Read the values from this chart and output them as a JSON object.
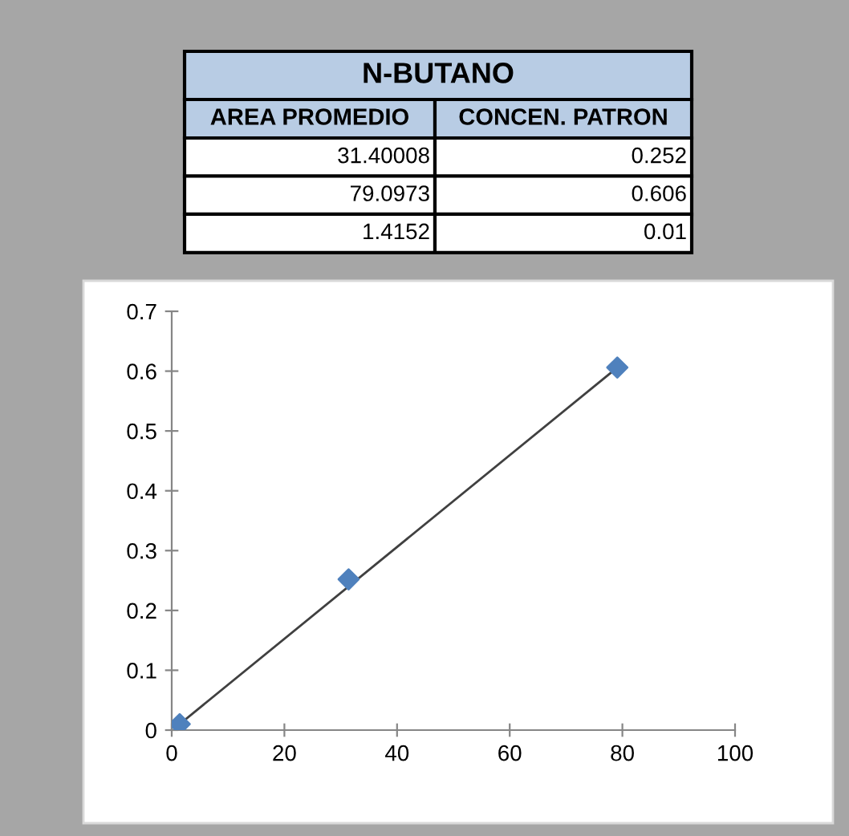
{
  "chart_data": [
    {
      "type": "other",
      "title": "N-BUTANO",
      "annotations": [
        "AREA PROMEDIO",
        "CONCEN. PATRON",
        "31.40008",
        "0.252",
        "79.0973",
        "0.606",
        "1.4152",
        "0.01"
      ]
    },
    {
      "type": "scatter",
      "x": [
        31.40008,
        79.0973,
        1.4152
      ],
      "series": [
        {
          "type": "scatter",
          "color": "#4f81bd",
          "marker": "diamond",
          "values": [
            0.252,
            0.606,
            0.01
          ]
        },
        {
          "type": "line",
          "color": "#404040",
          "x": [
            1.4152,
            79.0973
          ],
          "values": [
            0.01,
            0.606
          ],
          "line_style": "solid"
        }
      ],
      "xlim": [
        0,
        100
      ],
      "xticks": [
        0,
        20,
        40,
        60,
        80,
        100
      ],
      "ylim": [
        0,
        0.7
      ],
      "yticks": [
        0,
        0.1,
        0.2,
        0.3,
        0.4,
        0.5,
        0.6,
        0.7
      ],
      "grid": false,
      "legend": false
    }
  ]
}
